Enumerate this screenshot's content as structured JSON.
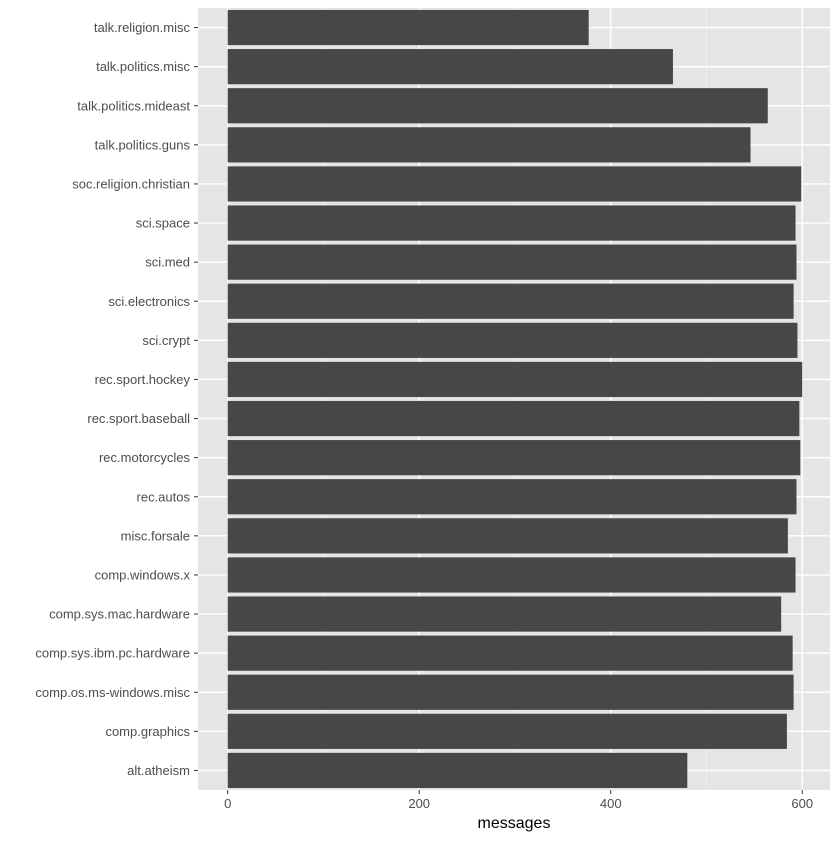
{
  "chart_data": {
    "type": "bar",
    "orientation": "horizontal",
    "categories": [
      "alt.atheism",
      "comp.graphics",
      "comp.os.ms-windows.misc",
      "comp.sys.ibm.pc.hardware",
      "comp.sys.mac.hardware",
      "comp.windows.x",
      "misc.forsale",
      "rec.autos",
      "rec.motorcycles",
      "rec.sport.baseball",
      "rec.sport.hockey",
      "sci.crypt",
      "sci.electronics",
      "sci.med",
      "sci.space",
      "soc.religion.christian",
      "talk.politics.guns",
      "talk.politics.mideast",
      "talk.politics.misc",
      "talk.religion.misc"
    ],
    "values": [
      480,
      584,
      591,
      590,
      578,
      593,
      585,
      594,
      598,
      597,
      600,
      595,
      591,
      594,
      593,
      599,
      546,
      564,
      465,
      377
    ],
    "title": "",
    "xlabel": "messages",
    "ylabel": "",
    "xlim": [
      -31,
      629
    ],
    "xticks": [
      0,
      200,
      400,
      600
    ],
    "xtick_labels": [
      "0",
      "200",
      "400",
      "600"
    ],
    "grid": true,
    "legend": "none",
    "colors": {
      "bar": "#474747",
      "panel_background": "#e5e5e5",
      "grid_major": "#ffffff",
      "grid_minor": "#f1f1f1",
      "text": "#4d4d4d",
      "axis_title": "#000000"
    }
  }
}
